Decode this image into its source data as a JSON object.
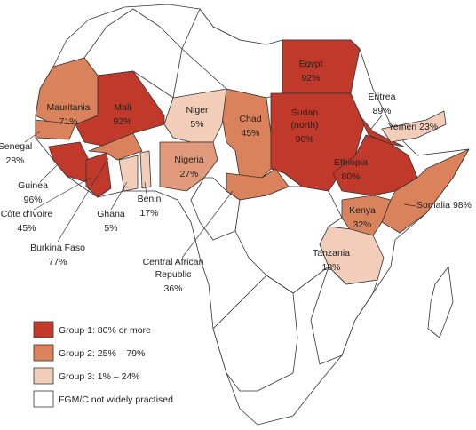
{
  "countries": [
    {
      "name": [
        "Egypt"
      ],
      "value": "92%"
    },
    {
      "name": [
        "Sudan",
        "(north)"
      ],
      "value": "90%"
    },
    {
      "name": [
        "Eritrea"
      ],
      "value": "89%"
    },
    {
      "name": [
        "Yemen"
      ],
      "value": "23%"
    },
    {
      "name": [
        "Ethiopia"
      ],
      "value": "80%"
    },
    {
      "name": [
        "Somalia"
      ],
      "value": "98%"
    },
    {
      "name": [
        "Kenya"
      ],
      "value": "32%"
    },
    {
      "name": [
        "Tanzania"
      ],
      "value": "18%"
    },
    {
      "name": [
        "Chad"
      ],
      "value": "45%"
    },
    {
      "name": [
        "Niger"
      ],
      "value": "5%"
    },
    {
      "name": [
        "Nigeria"
      ],
      "value": "27%"
    },
    {
      "name": [
        "Mali"
      ],
      "value": "92%"
    },
    {
      "name": [
        "Mauritania"
      ],
      "value": "71%"
    },
    {
      "name": [
        "Senegal"
      ],
      "value": "28%"
    },
    {
      "name": [
        "Guinea"
      ],
      "value": "96%"
    },
    {
      "name": [
        "Côte d'Ivoire"
      ],
      "value": "45%"
    },
    {
      "name": [
        "Burkina Faso"
      ],
      "value": "77%"
    },
    {
      "name": [
        "Ghana"
      ],
      "value": "5%"
    },
    {
      "name": [
        "Benin"
      ],
      "value": "17%"
    },
    {
      "name": [
        "Central African",
        "Republic"
      ],
      "value": "36%"
    }
  ],
  "legend": [
    {
      "label": "Group 1: 80% or more",
      "color": "#c0392b"
    },
    {
      "label": "Group 2: 25% – 79%",
      "color": "#d9825b"
    },
    {
      "label": "Group 3: 1% – 24%",
      "color": "#f2cdb9"
    },
    {
      "label": "FGM/C not widely practised",
      "color": "#ffffff"
    }
  ]
}
